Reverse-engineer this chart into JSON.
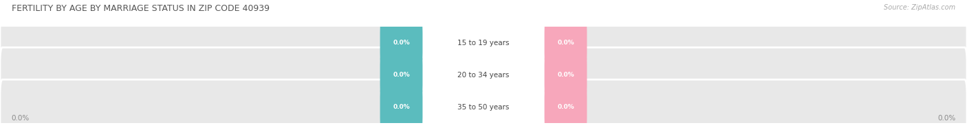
{
  "title": "FERTILITY BY AGE BY MARRIAGE STATUS IN ZIP CODE 40939",
  "source": "Source: ZipAtlas.com",
  "categories": [
    "15 to 19 years",
    "20 to 34 years",
    "35 to 50 years"
  ],
  "married_values": [
    0.0,
    0.0,
    0.0
  ],
  "unmarried_values": [
    0.0,
    0.0,
    0.0
  ],
  "married_color": "#5bbcbe",
  "unmarried_color": "#f7a7bb",
  "bar_bg_color": "#e8e8e8",
  "title_color": "#555555",
  "source_color": "#aaaaaa",
  "axis_label_color": "#888888",
  "cat_label_color": "#444444",
  "value_label_color": "#ffffff",
  "figsize": [
    14.06,
    1.96
  ],
  "dpi": 100
}
